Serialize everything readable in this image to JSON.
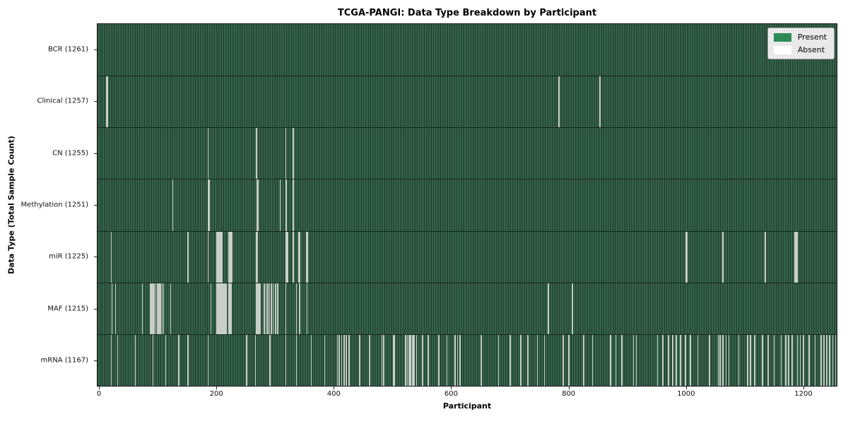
{
  "title": "TCGA-PANGI: Data Type Breakdown by Participant",
  "axes": {
    "x_label": "Participant",
    "y_label": "Data Type (Total Sample Count)",
    "x_ticks": [
      0,
      200,
      400,
      600,
      800,
      1000,
      1200
    ]
  },
  "legend": {
    "items": [
      {
        "label": "Present",
        "color": "#2e8b57"
      },
      {
        "label": "Absent",
        "color": "#ffffff"
      }
    ]
  },
  "colors": {
    "present_fill": "#2e8b57",
    "absent_fill": "#ffffff",
    "row_dark": "#1e3b2b",
    "row_mid": "#2d5742",
    "row_light": "#3a6950",
    "absent_stripe": "#c9cec9",
    "row_separator": "#15261c"
  },
  "chart_data": {
    "type": "heatmap",
    "title": "TCGA-PANGI: Data Type Breakdown by Participant",
    "xlabel": "Participant",
    "ylabel": "Data Type (Total Sample Count)",
    "x_range": [
      0,
      1261
    ],
    "legend": [
      "Present",
      "Absent"
    ],
    "legend_position": "upper right",
    "value_semantics": "green stripe = data type present for participant, light stripe = absent",
    "rows": [
      {
        "label": "BCR",
        "total": 1261,
        "absent": []
      },
      {
        "label": "Clinical",
        "total": 1257,
        "absent": [
          11,
          12,
          783,
          853
        ]
      },
      {
        "label": "CN",
        "total": 1255,
        "absent": [
          184,
          266,
          267,
          317,
          329,
          330
        ]
      },
      {
        "label": "Methylation",
        "total": 1251,
        "absent": [
          124,
          185,
          186,
          268,
          269,
          307,
          317,
          318,
          329,
          330
        ]
      },
      {
        "label": "miR",
        "total": 1225,
        "absent": [
          19,
          150,
          184,
          199,
          200,
          201,
          203,
          204,
          206,
          208,
          219,
          220,
          222,
          223,
          225,
          267,
          268,
          317,
          318,
          320,
          329,
          330,
          339,
          340,
          341,
          352,
          353,
          354,
          1000,
          1001,
          1062,
          1063,
          1135,
          1186,
          1188,
          1190
        ]
      },
      {
        "label": "MAF",
        "total": 1215,
        "absent": [
          20,
          26,
          72,
          86,
          88,
          90,
          92,
          95,
          98,
          100,
          103,
          106,
          108,
          120,
          189,
          199,
          200,
          201,
          203,
          205,
          207,
          209,
          211,
          213,
          215,
          219,
          221,
          223,
          267,
          269,
          271,
          273,
          280,
          283,
          286,
          289,
          292,
          295,
          299,
          303,
          317,
          335,
          340,
          353,
          765,
          806
        ]
      },
      {
        "label": "mRNA",
        "total": 1167,
        "absent": [
          19,
          30,
          60,
          90,
          112,
          134,
          150,
          184,
          250,
          265,
          290,
          317,
          335,
          360,
          383,
          405,
          408,
          412,
          416,
          420,
          425,
          443,
          460,
          481,
          484,
          500,
          502,
          521,
          524,
          527,
          530,
          533,
          536,
          540,
          550,
          560,
          578,
          592,
          606,
          610,
          614,
          650,
          680,
          700,
          718,
          730,
          746,
          758,
          790,
          800,
          825,
          840,
          871,
          880,
          890,
          910,
          915,
          951,
          960,
          970,
          977,
          983,
          990,
          999,
          1007,
          1020,
          1040,
          1055,
          1058,
          1063,
          1068,
          1073,
          1090,
          1105,
          1110,
          1117,
          1130,
          1140,
          1150,
          1162,
          1170,
          1175,
          1181,
          1190,
          1195,
          1200,
          1210,
          1220,
          1230,
          1235,
          1240,
          1245,
          1250,
          1255
        ]
      }
    ]
  }
}
